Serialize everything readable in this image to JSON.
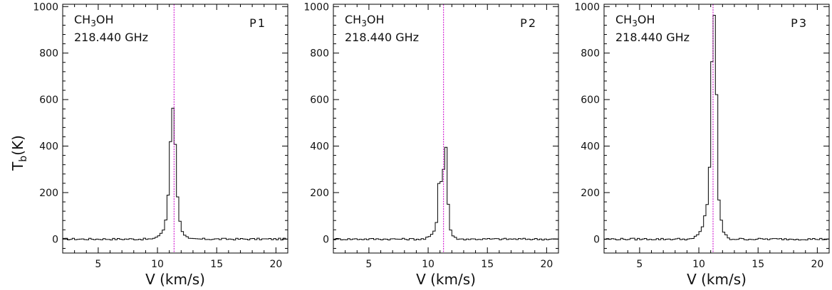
{
  "figure": {
    "ylabel_main": "T",
    "ylabel_sub": "b",
    "ylabel_unit": "(K)"
  },
  "chart_data": [
    {
      "type": "line",
      "style": "step",
      "panel_label": "P1",
      "molecule_prefix": "CH",
      "molecule_sub": "3",
      "molecule_suffix": "OH",
      "frequency": "218.440 GHz",
      "xlabel": "V (km/s)",
      "xlim": [
        2,
        21
      ],
      "ylim": [
        -60,
        1010
      ],
      "xticks": [
        5,
        10,
        15,
        20
      ],
      "yticks": [
        0,
        200,
        400,
        600,
        800,
        1000
      ],
      "vline": 11.4,
      "vline_color": "#cc00cc",
      "baseline": 0,
      "peak_profile": [
        [
          9.7,
          8
        ],
        [
          9.9,
          10
        ],
        [
          10.1,
          15
        ],
        [
          10.3,
          25
        ],
        [
          10.5,
          40
        ],
        [
          10.7,
          80
        ],
        [
          10.9,
          190
        ],
        [
          11.1,
          420
        ],
        [
          11.3,
          565
        ],
        [
          11.5,
          410
        ],
        [
          11.7,
          180
        ],
        [
          11.9,
          80
        ],
        [
          12.1,
          35
        ],
        [
          12.3,
          15
        ],
        [
          12.5,
          8
        ]
      ],
      "noise": 4
    },
    {
      "type": "line",
      "style": "step",
      "panel_label": "P2",
      "molecule_prefix": "CH",
      "molecule_sub": "3",
      "molecule_suffix": "OH",
      "frequency": "218.440 GHz",
      "xlabel": "V (km/s)",
      "xlim": [
        2,
        21
      ],
      "ylim": [
        -60,
        1010
      ],
      "xticks": [
        5,
        10,
        15,
        20
      ],
      "yticks": [
        0,
        200,
        400,
        600,
        800,
        1000
      ],
      "vline": 11.3,
      "vline_color": "#cc00cc",
      "baseline": 0,
      "peak_profile": [
        [
          9.7,
          2
        ],
        [
          9.9,
          5
        ],
        [
          10.1,
          10
        ],
        [
          10.3,
          18
        ],
        [
          10.5,
          35
        ],
        [
          10.7,
          75
        ],
        [
          10.9,
          240
        ],
        [
          11.1,
          250
        ],
        [
          11.3,
          300
        ],
        [
          11.5,
          395
        ],
        [
          11.7,
          150
        ],
        [
          11.9,
          40
        ],
        [
          12.1,
          15
        ],
        [
          12.3,
          5
        ],
        [
          12.5,
          2
        ]
      ],
      "noise": 4
    },
    {
      "type": "line",
      "style": "step",
      "panel_label": "P3",
      "molecule_prefix": "CH",
      "molecule_sub": "3",
      "molecule_suffix": "OH",
      "frequency": "218.440 GHz",
      "xlabel": "V (km/s)",
      "xlim": [
        2,
        21
      ],
      "ylim": [
        -60,
        1010
      ],
      "xticks": [
        5,
        10,
        15,
        20
      ],
      "yticks": [
        0,
        200,
        400,
        600,
        800,
        1000
      ],
      "vline": 11.2,
      "vline_color": "#cc00cc",
      "baseline": 0,
      "peak_profile": [
        [
          9.5,
          4
        ],
        [
          9.7,
          10
        ],
        [
          9.9,
          18
        ],
        [
          10.1,
          30
        ],
        [
          10.3,
          55
        ],
        [
          10.5,
          100
        ],
        [
          10.7,
          150
        ],
        [
          10.9,
          310
        ],
        [
          11.1,
          760
        ],
        [
          11.3,
          960
        ],
        [
          11.5,
          620
        ],
        [
          11.7,
          170
        ],
        [
          11.9,
          80
        ],
        [
          12.1,
          30
        ],
        [
          12.3,
          15
        ],
        [
          12.5,
          6
        ]
      ],
      "noise": 4
    }
  ]
}
